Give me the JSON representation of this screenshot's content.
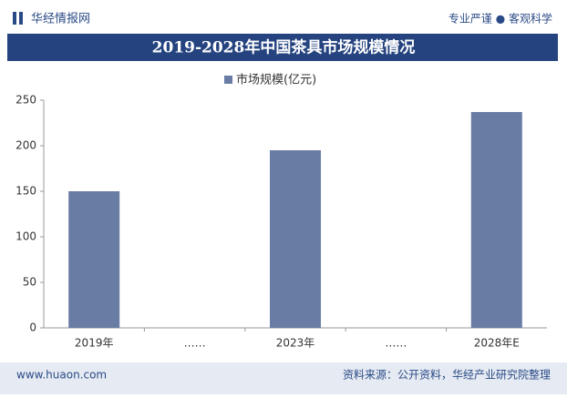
{
  "header": {
    "brand": "华经情报网",
    "slogan": "专业严谨 ● 客观科学"
  },
  "footer": {
    "site": "www.huaon.com",
    "source": "资料来源：公开资料，华经产业研究院整理"
  },
  "chart_data": {
    "type": "bar",
    "title": "2019-2028年中国茶具市场规模情况",
    "categories": [
      "2019年",
      "……",
      "2023年",
      "……",
      "2028年E"
    ],
    "series": [
      {
        "name": "市场规模(亿元)",
        "color": "#687ca4",
        "values": [
          150,
          null,
          195,
          null,
          237
        ]
      }
    ],
    "ylim": [
      0,
      250
    ],
    "yticks": [
      0,
      50,
      100,
      150,
      200,
      250
    ],
    "grid": false,
    "legend": "top"
  }
}
